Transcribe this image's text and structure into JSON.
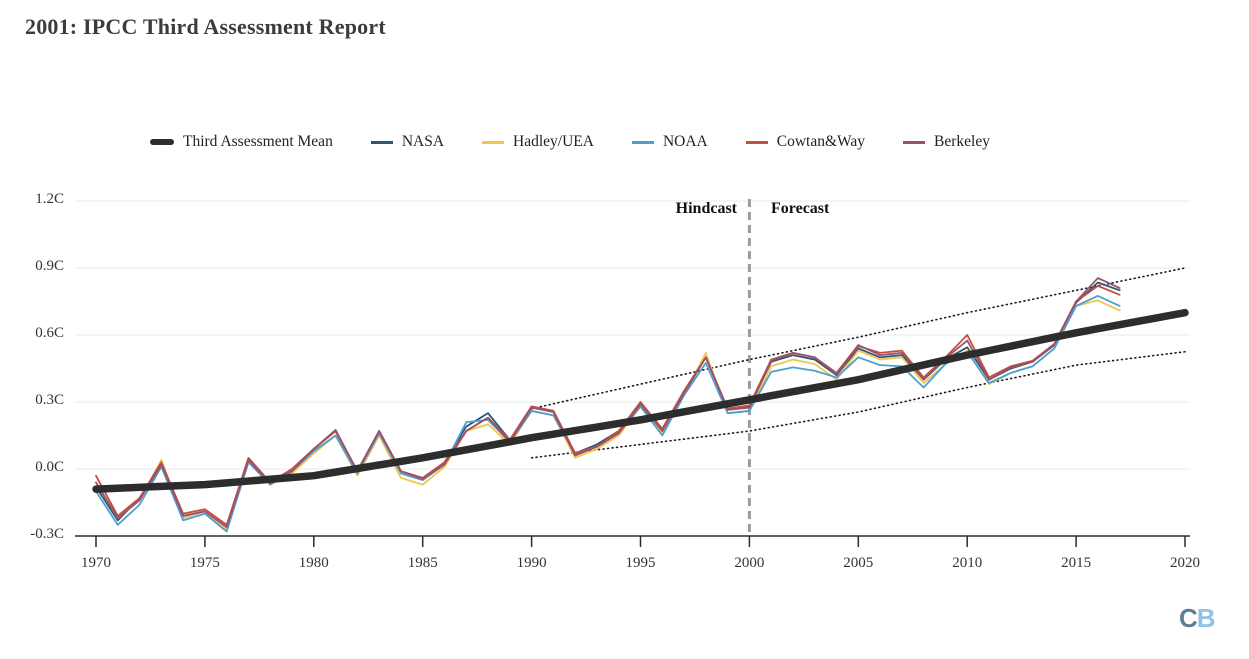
{
  "page": {
    "title": "2001: IPCC Third Assessment Report"
  },
  "logo": {
    "c": "C",
    "b": "B",
    "c_color": "#5d7e97",
    "b_color": "#90c2e8"
  },
  "chart_data": {
    "type": "line",
    "title": "2001: IPCC Third Assessment Report",
    "xlabel": "",
    "ylabel": "",
    "x_domain": [
      1969,
      2020.3
    ],
    "y_domain": [
      -0.3,
      1.2
    ],
    "grid": "horizontal",
    "legend_position": "top",
    "x_axis": {
      "tick_values": [
        1970,
        1975,
        1980,
        1985,
        1990,
        1995,
        2000,
        2005,
        2010,
        2015,
        2020
      ],
      "tick_labels": [
        "1970",
        "1975",
        "1980",
        "1985",
        "1990",
        "1995",
        "2000",
        "2005",
        "2010",
        "2015",
        "2020"
      ]
    },
    "y_axis": {
      "tick_values": [
        1.2,
        0.9,
        0.6,
        0.3,
        0.0,
        -0.3
      ],
      "tick_labels": [
        "1.2C",
        "0.9C",
        "0.6C",
        "0.3C",
        "0.0C",
        "-0.3C"
      ]
    },
    "annotations": {
      "hindcast": "Hindcast",
      "forecast": "Forecast",
      "divider_year": 2000
    },
    "colors": {
      "grid": "#eaeaea",
      "axis": "#2b2b2b",
      "divider": "#9b9b9b",
      "envelope": "#1a1a1a"
    },
    "envelope": {
      "style": "dotted",
      "upper": {
        "years": [
          1990,
          1995,
          2000,
          2005,
          2010,
          2015,
          2020
        ],
        "values": [
          0.27,
          0.38,
          0.49,
          0.59,
          0.7,
          0.8,
          0.9
        ]
      },
      "lower": {
        "years": [
          1990,
          1995,
          2000,
          2005,
          2010,
          2015,
          2020
        ],
        "values": [
          0.05,
          0.11,
          0.17,
          0.255,
          0.365,
          0.465,
          0.525
        ]
      }
    },
    "series": [
      {
        "id": "mean",
        "name": "Third Assessment Mean",
        "role": "model-mean",
        "color": "#2d2d2d",
        "width": 7.5,
        "start_year": 1970,
        "values": [
          -0.09,
          -0.086,
          -0.082,
          -0.078,
          -0.074,
          -0.07,
          -0.062,
          -0.054,
          -0.046,
          -0.038,
          -0.03,
          -0.014,
          0.002,
          0.018,
          0.034,
          0.05,
          0.068,
          0.086,
          0.104,
          0.122,
          0.14,
          0.156,
          0.172,
          0.188,
          0.204,
          0.22,
          0.238,
          0.256,
          0.274,
          0.292,
          0.31,
          0.328,
          0.346,
          0.364,
          0.382,
          0.4,
          0.422,
          0.444,
          0.466,
          0.488,
          0.51,
          0.53,
          0.55,
          0.57,
          0.59,
          0.61,
          0.628,
          0.646,
          0.664,
          0.682,
          0.7
        ]
      },
      {
        "id": "nasa",
        "name": "NASA",
        "role": "observation",
        "color": "#2c5876",
        "width": 1.8,
        "start_year": 1970,
        "values": [
          -0.08,
          -0.23,
          -0.13,
          0.02,
          -0.21,
          -0.19,
          -0.27,
          0.04,
          -0.06,
          0.0,
          0.09,
          0.17,
          -0.01,
          0.17,
          -0.01,
          -0.04,
          0.03,
          0.19,
          0.25,
          0.13,
          0.28,
          0.26,
          0.07,
          0.11,
          0.17,
          0.29,
          0.18,
          0.34,
          0.5,
          0.27,
          0.28,
          0.48,
          0.51,
          0.49,
          0.42,
          0.54,
          0.5,
          0.51,
          0.4,
          0.49,
          0.545,
          0.4,
          0.45,
          0.48,
          0.555,
          0.745,
          0.835,
          0.8
        ]
      },
      {
        "id": "hadley",
        "name": "Hadley/UEA",
        "role": "observation",
        "color": "#f0c64c",
        "width": 1.8,
        "start_year": 1970,
        "values": [
          -0.06,
          -0.22,
          -0.14,
          0.04,
          -0.22,
          -0.19,
          -0.27,
          0.03,
          -0.07,
          -0.02,
          0.07,
          0.15,
          -0.03,
          0.15,
          -0.04,
          -0.07,
          0.01,
          0.17,
          0.2,
          0.11,
          0.26,
          0.24,
          0.05,
          0.09,
          0.15,
          0.28,
          0.16,
          0.33,
          0.52,
          0.25,
          0.26,
          0.46,
          0.49,
          0.47,
          0.4,
          0.53,
          0.49,
          0.5,
          0.385,
          0.47,
          0.53,
          0.38,
          0.43,
          0.46,
          0.54,
          0.73,
          0.755,
          0.71
        ]
      },
      {
        "id": "noaa",
        "name": "NOAA",
        "role": "observation",
        "color": "#4ba0d1",
        "width": 1.8,
        "start_year": 1970,
        "values": [
          -0.1,
          -0.25,
          -0.16,
          0.01,
          -0.23,
          -0.2,
          -0.28,
          0.03,
          -0.07,
          -0.01,
          0.08,
          0.15,
          -0.02,
          0.16,
          -0.02,
          -0.05,
          0.02,
          0.21,
          0.22,
          0.12,
          0.26,
          0.24,
          0.07,
          0.1,
          0.16,
          0.28,
          0.15,
          0.33,
          0.475,
          0.25,
          0.26,
          0.435,
          0.455,
          0.44,
          0.41,
          0.5,
          0.465,
          0.46,
          0.365,
          0.47,
          0.525,
          0.385,
          0.43,
          0.46,
          0.54,
          0.73,
          0.775,
          0.73
        ]
      },
      {
        "id": "cowtan-way",
        "name": "Cowtan&Way",
        "role": "observation",
        "color": "#c24f42",
        "width": 1.8,
        "start_year": 1970,
        "values": [
          -0.03,
          -0.21,
          -0.13,
          0.03,
          -0.2,
          -0.18,
          -0.25,
          0.05,
          -0.06,
          0.0,
          0.09,
          0.17,
          -0.01,
          0.17,
          -0.01,
          -0.04,
          0.03,
          0.17,
          0.23,
          0.13,
          0.28,
          0.26,
          0.07,
          0.1,
          0.17,
          0.3,
          0.18,
          0.35,
          0.5,
          0.27,
          0.285,
          0.49,
          0.52,
          0.5,
          0.425,
          0.55,
          0.52,
          0.53,
          0.41,
          0.5,
          0.6,
          0.41,
          0.46,
          0.485,
          0.56,
          0.75,
          0.82,
          0.78
        ]
      },
      {
        "id": "berkeley",
        "name": "Berkeley",
        "role": "observation",
        "color": "#9d5168",
        "width": 1.8,
        "start_year": 1970,
        "values": [
          -0.06,
          -0.22,
          -0.14,
          0.02,
          -0.21,
          -0.19,
          -0.26,
          0.04,
          -0.065,
          -0.01,
          0.09,
          0.175,
          -0.01,
          0.17,
          -0.01,
          -0.045,
          0.02,
          0.17,
          0.23,
          0.12,
          0.275,
          0.255,
          0.06,
          0.1,
          0.16,
          0.29,
          0.17,
          0.34,
          0.5,
          0.265,
          0.275,
          0.485,
          0.52,
          0.5,
          0.43,
          0.555,
          0.51,
          0.52,
          0.4,
          0.495,
          0.575,
          0.4,
          0.455,
          0.48,
          0.56,
          0.75,
          0.855,
          0.81
        ]
      }
    ]
  }
}
